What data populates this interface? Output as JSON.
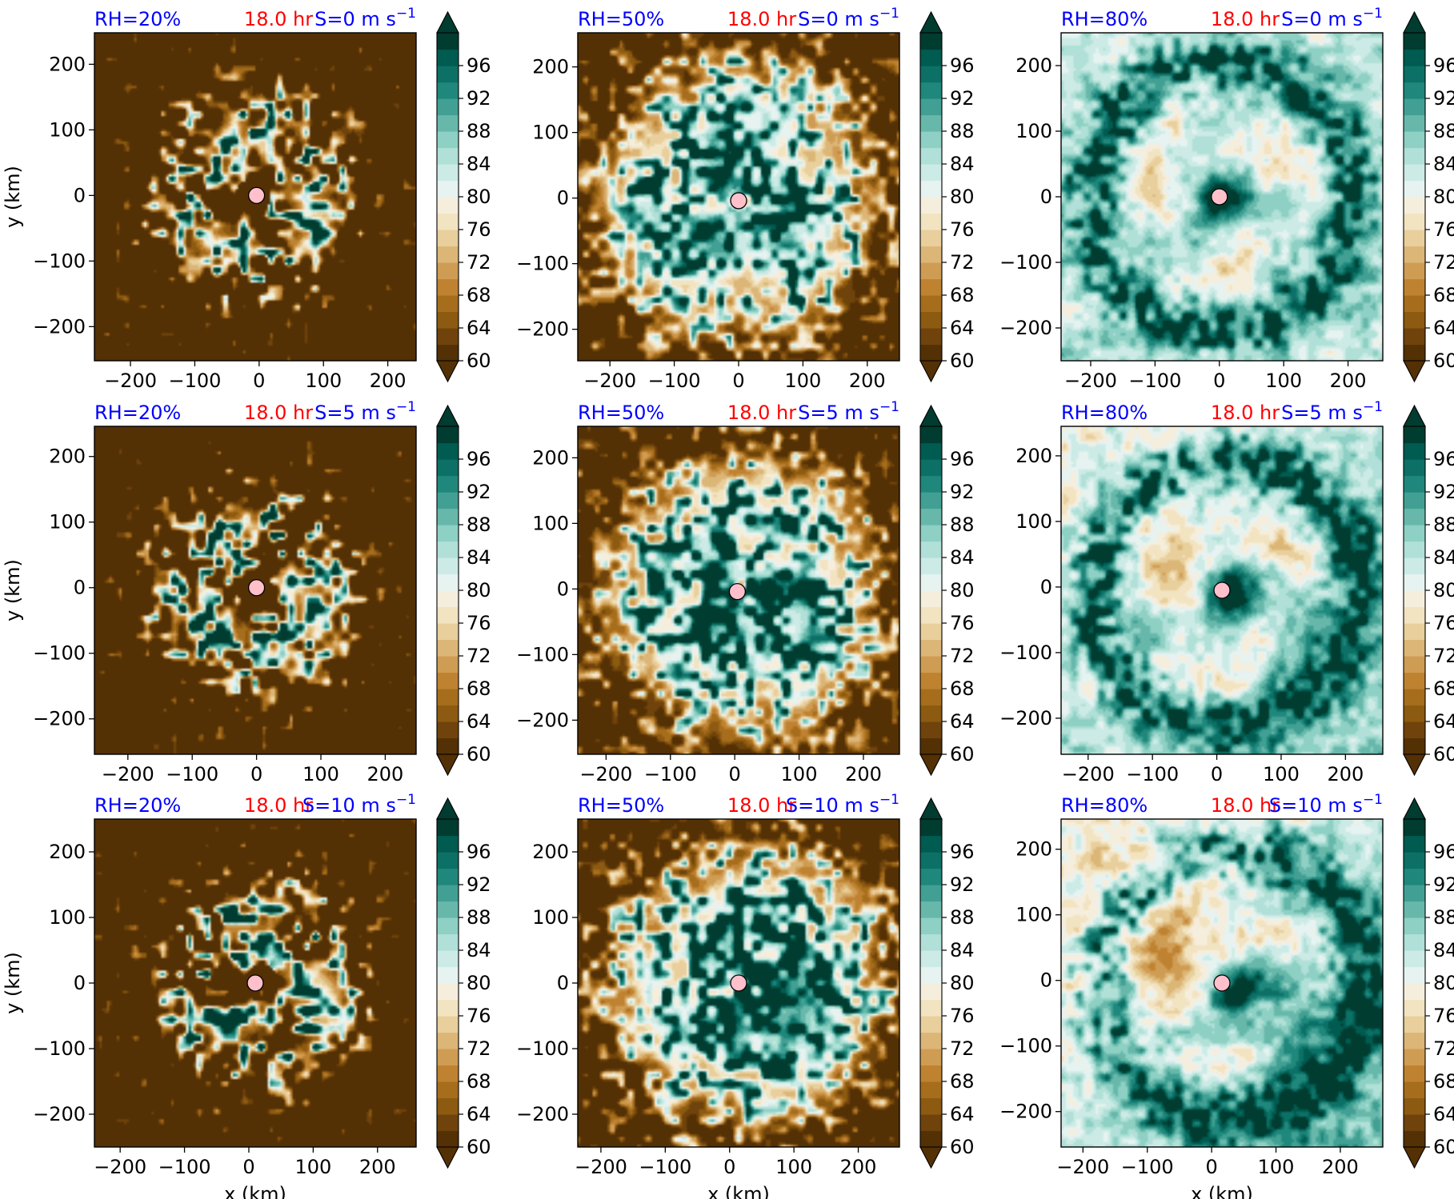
{
  "figure": {
    "colorbar": {
      "ticks": [
        "60",
        "64",
        "68",
        "72",
        "76",
        "80",
        "84",
        "88",
        "92",
        "96"
      ],
      "levels": [
        60,
        62,
        64,
        66,
        68,
        70,
        72,
        74,
        76,
        78,
        80,
        82,
        84,
        86,
        88,
        90,
        92,
        94,
        96,
        98
      ],
      "colors": [
        "#543005",
        "#6f430b",
        "#8c5a10",
        "#a66d1c",
        "#bf8231",
        "#cf9c53",
        "#dcb677",
        "#e8cf9c",
        "#f2e3c1",
        "#f6eedd",
        "#e6f3f1",
        "#cdebe6",
        "#b0e0d7",
        "#8ed0c4",
        "#67b8ab",
        "#41a093",
        "#1f877c",
        "#0c7066",
        "#005b50",
        "#003c30"
      ],
      "extend": "both"
    },
    "center_marker_color": "#ffc0cb",
    "accent_colors": {
      "blue": "#0000ff",
      "red": "#ff0000"
    }
  },
  "chart_data": [
    {
      "type": "heatmap",
      "row": 0,
      "col": 0,
      "rh_label": "RH=20%",
      "time_label": "18.0 hr",
      "shear_label": "S=0 m s",
      "shear_exp": "−1",
      "ylabel": "y (km)",
      "xlabel": "",
      "xticks": [
        "−200",
        "−100",
        "0",
        "100",
        "200"
      ],
      "yticks": [
        "−200",
        "−100",
        "0",
        "100",
        "200"
      ],
      "xtick_values": [
        -200,
        -100,
        0,
        100,
        200
      ],
      "ytick_values": [
        -200,
        -100,
        0,
        100,
        200
      ],
      "xlim": [
        -256,
        244
      ],
      "ylim": [
        -252,
        248
      ],
      "center": [
        -4,
        0
      ]
    },
    {
      "type": "heatmap",
      "row": 0,
      "col": 1,
      "rh_label": "RH=50%",
      "time_label": "18.0 hr",
      "shear_label": "S=0 m s",
      "shear_exp": "−1",
      "ylabel": "",
      "xlabel": "",
      "xticks": [
        "−200",
        "−100",
        "0",
        "100",
        "200"
      ],
      "yticks": [
        "−200",
        "−100",
        "0",
        "100",
        "200"
      ],
      "xtick_values": [
        -200,
        -100,
        0,
        100,
        200
      ],
      "ytick_values": [
        -200,
        -100,
        0,
        100,
        200
      ],
      "xlim": [
        -250,
        250
      ],
      "ylim": [
        -248,
        252
      ],
      "center": [
        0,
        -4
      ]
    },
    {
      "type": "heatmap",
      "row": 0,
      "col": 2,
      "rh_label": "RH=80%",
      "time_label": "18.0 hr",
      "shear_label": "S=0 m s",
      "shear_exp": "−1",
      "ylabel": "",
      "xlabel": "",
      "xticks": [
        "−200",
        "−100",
        "0",
        "100",
        "200"
      ],
      "yticks": [
        "−200",
        "−100",
        "0",
        "100",
        "200"
      ],
      "xtick_values": [
        -200,
        -100,
        0,
        100,
        200
      ],
      "ytick_values": [
        -200,
        -100,
        0,
        100,
        200
      ],
      "xlim": [
        -246,
        254
      ],
      "ylim": [
        -250,
        250
      ],
      "center": [
        0,
        0
      ]
    },
    {
      "type": "heatmap",
      "row": 1,
      "col": 0,
      "rh_label": "RH=20%",
      "time_label": "18.0 hr",
      "shear_label": "S=5 m s",
      "shear_exp": "−1",
      "ylabel": "y (km)",
      "xlabel": "",
      "xticks": [
        "−200",
        "−100",
        "0",
        "100",
        "200"
      ],
      "yticks": [
        "−200",
        "−100",
        "0",
        "100",
        "200"
      ],
      "xtick_values": [
        -200,
        -100,
        0,
        100,
        200
      ],
      "ytick_values": [
        -200,
        -100,
        0,
        100,
        200
      ],
      "xlim": [
        -252,
        248
      ],
      "ylim": [
        -254,
        246
      ],
      "center": [
        0,
        0
      ]
    },
    {
      "type": "heatmap",
      "row": 1,
      "col": 1,
      "rh_label": "RH=50%",
      "time_label": "18.0 hr",
      "shear_label": "S=5 m s",
      "shear_exp": "−1",
      "ylabel": "",
      "xlabel": "",
      "xticks": [
        "−200",
        "−100",
        "0",
        "100",
        "200"
      ],
      "yticks": [
        "−200",
        "−100",
        "0",
        "100",
        "200"
      ],
      "xtick_values": [
        -200,
        -100,
        0,
        100,
        200
      ],
      "ytick_values": [
        -200,
        -100,
        0,
        100,
        200
      ],
      "xlim": [
        -244,
        256
      ],
      "ylim": [
        -252,
        248
      ],
      "center": [
        4,
        -4
      ]
    },
    {
      "type": "heatmap",
      "row": 1,
      "col": 2,
      "rh_label": "RH=80%",
      "time_label": "18.0 hr",
      "shear_label": "S=5 m s",
      "shear_exp": "−1",
      "ylabel": "",
      "xlabel": "",
      "xticks": [
        "−200",
        "−100",
        "0",
        "100",
        "200"
      ],
      "yticks": [
        "−200",
        "−100",
        "0",
        "100",
        "200"
      ],
      "xtick_values": [
        -200,
        -100,
        0,
        100,
        200
      ],
      "ytick_values": [
        -200,
        -100,
        0,
        100,
        200
      ],
      "xlim": [
        -242,
        258
      ],
      "ylim": [
        -255,
        245
      ],
      "center": [
        8,
        -5
      ]
    },
    {
      "type": "heatmap",
      "row": 2,
      "col": 0,
      "rh_label": "RH=20%",
      "time_label": "18.0 hr",
      "shear_label": "S=10 m s",
      "shear_exp": "−1",
      "ylabel": "y (km)",
      "xlabel": "x (km)",
      "xticks": [
        "−200",
        "−100",
        "0",
        "100",
        "200"
      ],
      "yticks": [
        "−200",
        "−100",
        "0",
        "100",
        "200"
      ],
      "xtick_values": [
        -200,
        -100,
        0,
        100,
        200
      ],
      "ytick_values": [
        -200,
        -100,
        0,
        100,
        200
      ],
      "xlim": [
        -240,
        260
      ],
      "ylim": [
        -250,
        250
      ],
      "center": [
        10,
        0
      ]
    },
    {
      "type": "heatmap",
      "row": 2,
      "col": 1,
      "rh_label": "RH=50%",
      "time_label": "18.0 hr",
      "shear_label": "S=10 m s",
      "shear_exp": "−1",
      "ylabel": "",
      "xlabel": "x (km)",
      "xticks": [
        "−200",
        "−100",
        "0",
        "100",
        "200"
      ],
      "yticks": [
        "−200",
        "−100",
        "0",
        "100",
        "200"
      ],
      "xtick_values": [
        -200,
        -100,
        0,
        100,
        200
      ],
      "ytick_values": [
        -200,
        -100,
        0,
        100,
        200
      ],
      "xlim": [
        -236,
        264
      ],
      "ylim": [
        -250,
        250
      ],
      "center": [
        14,
        0
      ]
    },
    {
      "type": "heatmap",
      "row": 2,
      "col": 2,
      "rh_label": "RH=80%",
      "time_label": "18.0 hr",
      "shear_label": "S=10 m s",
      "shear_exp": "−1",
      "ylabel": "",
      "xlabel": "x (km)",
      "xticks": [
        "−200",
        "−100",
        "0",
        "100",
        "200"
      ],
      "yticks": [
        "−200",
        "−100",
        "0",
        "100",
        "200"
      ],
      "xtick_values": [
        -200,
        -100,
        0,
        100,
        200
      ],
      "ytick_values": [
        -200,
        -100,
        0,
        100,
        200
      ],
      "xlim": [
        -234,
        266
      ],
      "ylim": [
        -254,
        246
      ],
      "center": [
        16,
        -4
      ]
    }
  ]
}
